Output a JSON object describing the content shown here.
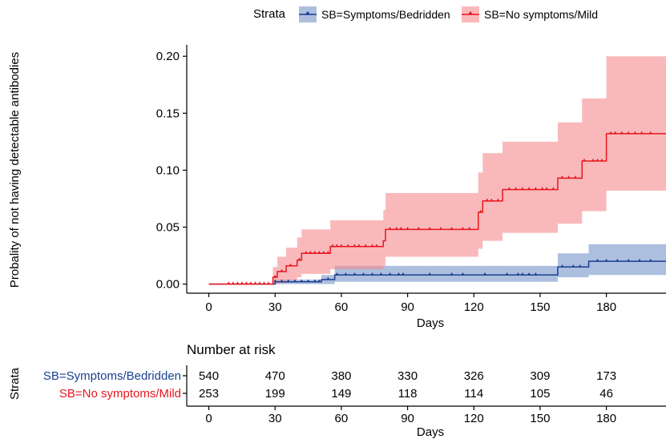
{
  "chart_data": {
    "type": "line",
    "step": true,
    "ylabel": "Probality of not having detectable antibodies",
    "xlabel": "Days",
    "xlim": [
      -10,
      207
    ],
    "ylim": [
      -0.008,
      0.21
    ],
    "x_ticks": [
      0,
      30,
      60,
      90,
      120,
      150,
      180
    ],
    "y_ticks": [
      0.0,
      0.05,
      0.1,
      0.15,
      0.2
    ],
    "y_tick_labels": [
      "0.00",
      "0.05",
      "0.10",
      "0.15",
      "0.20"
    ],
    "legend": {
      "title": "Strata",
      "position": "top",
      "entries": [
        "SB=Symptoms/Bedridden",
        "SB=No symptoms/Mild"
      ]
    },
    "series": [
      {
        "name": "SB=Symptoms/Bedridden",
        "color": "#1a3f8f",
        "band_color": "#5b7fbf",
        "steps": [
          [
            0,
            0
          ],
          [
            30,
            0.002
          ],
          [
            51,
            0.004
          ],
          [
            57,
            0.008
          ],
          [
            158,
            0.015
          ],
          [
            172,
            0.02
          ],
          [
            207,
            0.02
          ]
        ],
        "lower": [
          [
            0,
            0
          ],
          [
            30,
            0
          ],
          [
            51,
            0
          ],
          [
            57,
            0.002
          ],
          [
            158,
            0.006
          ],
          [
            172,
            0.008
          ],
          [
            207,
            0.008
          ]
        ],
        "upper": [
          [
            0,
            0
          ],
          [
            30,
            0.004
          ],
          [
            51,
            0.008
          ],
          [
            57,
            0.016
          ],
          [
            158,
            0.027
          ],
          [
            172,
            0.035
          ],
          [
            207,
            0.035
          ]
        ],
        "censor_x": [
          30,
          33,
          36,
          39,
          42,
          45,
          48,
          50,
          54,
          58,
          62,
          66,
          70,
          74,
          78,
          82,
          86,
          88,
          100,
          110,
          115,
          125,
          135,
          140,
          142,
          145,
          148,
          160,
          165,
          168,
          176,
          180,
          185,
          190,
          195,
          200
        ]
      },
      {
        "name": "SB=No symptoms/Mild",
        "color": "#e8171f",
        "band_color": "#f58a8e",
        "steps": [
          [
            0,
            0
          ],
          [
            29,
            0.006
          ],
          [
            31,
            0.011
          ],
          [
            35,
            0.016
          ],
          [
            40,
            0.021
          ],
          [
            42,
            0.027
          ],
          [
            55,
            0.033
          ],
          [
            79,
            0.038
          ],
          [
            80,
            0.048
          ],
          [
            122,
            0.063
          ],
          [
            124,
            0.073
          ],
          [
            133,
            0.083
          ],
          [
            158,
            0.093
          ],
          [
            169,
            0.108
          ],
          [
            180,
            0.132
          ],
          [
            207,
            0.132
          ]
        ],
        "lower": [
          [
            0,
            0
          ],
          [
            29,
            0
          ],
          [
            31,
            0.001
          ],
          [
            35,
            0.003
          ],
          [
            40,
            0.006
          ],
          [
            42,
            0.009
          ],
          [
            55,
            0.013
          ],
          [
            79,
            0.016
          ],
          [
            80,
            0.024
          ],
          [
            122,
            0.031
          ],
          [
            124,
            0.038
          ],
          [
            133,
            0.045
          ],
          [
            158,
            0.053
          ],
          [
            169,
            0.064
          ],
          [
            180,
            0.082
          ],
          [
            207,
            0.082
          ]
        ],
        "upper": [
          [
            0,
            0
          ],
          [
            29,
            0.015
          ],
          [
            31,
            0.024
          ],
          [
            35,
            0.032
          ],
          [
            40,
            0.041
          ],
          [
            42,
            0.048
          ],
          [
            55,
            0.056
          ],
          [
            79,
            0.065
          ],
          [
            80,
            0.08
          ],
          [
            122,
            0.098
          ],
          [
            124,
            0.115
          ],
          [
            133,
            0.125
          ],
          [
            158,
            0.142
          ],
          [
            169,
            0.163
          ],
          [
            180,
            0.2
          ],
          [
            207,
            0.2
          ]
        ],
        "censor_x": [
          9,
          11,
          13,
          15,
          17,
          19,
          21,
          23,
          25,
          27,
          30,
          33,
          37,
          41,
          44,
          46,
          48,
          50,
          52,
          54,
          56,
          58,
          60,
          63,
          66,
          68,
          71,
          74,
          76,
          82,
          85,
          87,
          90,
          95,
          100,
          105,
          110,
          115,
          118,
          123,
          126,
          128,
          131,
          136,
          139,
          142,
          145,
          148,
          151,
          153,
          156,
          160,
          163,
          166,
          170,
          174,
          176,
          178,
          182,
          184,
          187,
          190,
          193,
          196,
          200
        ]
      }
    ]
  },
  "risk_table": {
    "title": "Number at risk",
    "strata_label": "Strata",
    "xlabel": "Days",
    "x_ticks": [
      0,
      30,
      60,
      90,
      120,
      150,
      180
    ],
    "rows": [
      {
        "name": "SB=Symptoms/Bedridden",
        "color": "#1a3f8f",
        "values": [
          "540",
          "470",
          "380",
          "330",
          "326",
          "309",
          "173"
        ]
      },
      {
        "name": "SB=No symptoms/Mild",
        "color": "#e8171f",
        "values": [
          "253",
          "199",
          "149",
          "118",
          "114",
          "105",
          "46"
        ]
      }
    ]
  }
}
